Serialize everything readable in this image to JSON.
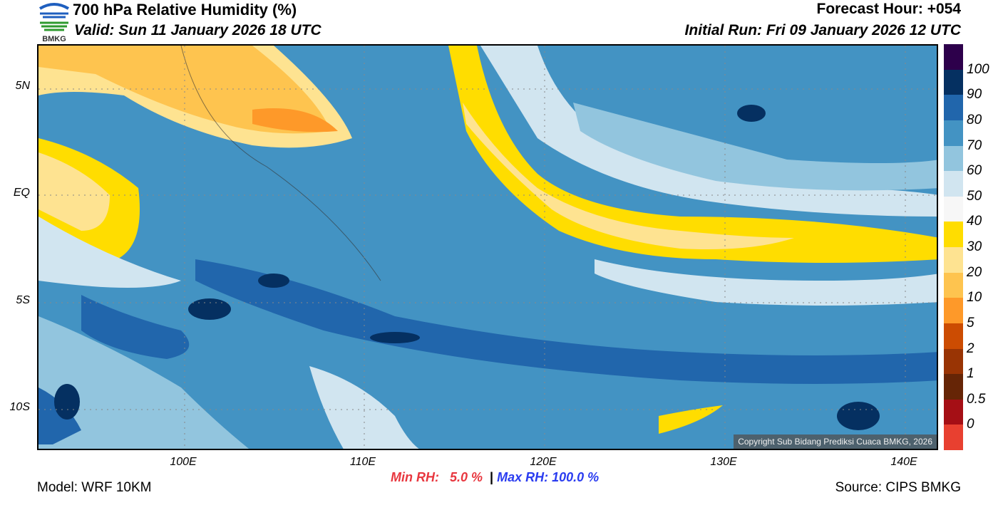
{
  "header": {
    "title": "700 hPa Relative Humidity (%)",
    "valid": "Valid: Sun 11 January 2026 18 UTC",
    "forecast_hour": "Forecast Hour: +054",
    "initial_run": "Initial Run: Fri 09 January 2026 12 UTC",
    "logo_text": "BMKG"
  },
  "axes": {
    "lat_ticks": [
      "5N",
      "EQ",
      "5S",
      "10S"
    ],
    "lon_ticks": [
      "100E",
      "110E",
      "120E",
      "130E",
      "140E"
    ]
  },
  "colorbar": {
    "labels": [
      "0",
      "0.5",
      "1",
      "2",
      "5",
      "10",
      "20",
      "30",
      "40",
      "50",
      "60",
      "70",
      "80",
      "90",
      "100"
    ],
    "colors": [
      "#e84030",
      "#a50f15",
      "#662506",
      "#993404",
      "#cc4c02",
      "#fe9929",
      "#fec44f",
      "#fee391",
      "#ffdd00",
      "#f7f7f7",
      "#d1e5f0",
      "#92c5de",
      "#4393c3",
      "#2166ac",
      "#053061",
      "#2d004b"
    ]
  },
  "stats": {
    "min_label": "Min RH:",
    "min_value": "5.0 %",
    "separator": "|",
    "max_label": "Max RH:",
    "max_value": "100.0 %",
    "min_color": "#e8373f",
    "max_color": "#2a3cf0"
  },
  "footer": {
    "model": "Model: WRF 10KM",
    "source": "Source: CIPS BMKG",
    "copyright": "Copyright Sub Bidang Prediksi Cuaca BMKG, 2026"
  }
}
